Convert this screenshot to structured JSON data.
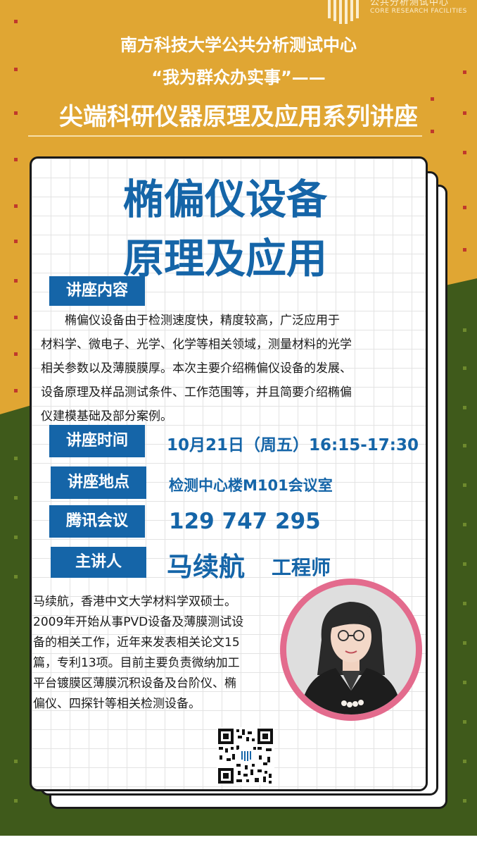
{
  "logo": {
    "name_cn": "公共分析测试中心",
    "name_en": "CORE RESEARCH FACILITIES"
  },
  "header": {
    "line1": "南方科技大学公共分析测试中心",
    "line2": "“我为群众办实事”——",
    "line3": "尖端科研仪器原理及应用系列讲座"
  },
  "title": {
    "line1": "椭偏仪设备",
    "line2": "原理及应用"
  },
  "content": {
    "label": "讲座内容",
    "lines": [
      "　　椭偏仪设备由于检测速度快，精度较高，广泛应用于",
      "材料学、微电子、光学、化学等相关领域，测量材料的光学",
      "相关参数以及薄膜膜厚。本次主要介绍椭偏仪设备的发展、",
      "设备原理及样品测试条件、工作范围等，并且简要介绍椭偏",
      "仪建模基础及部分案例。"
    ]
  },
  "time": {
    "label": "讲座时间",
    "value": "10月21日（周五）16:15-17:30"
  },
  "place": {
    "label": "讲座地点",
    "value": "检测中心楼M101会议室"
  },
  "meeting": {
    "label": "腾讯会议",
    "value": "129 747 295"
  },
  "speaker": {
    "label": "主讲人",
    "name": "马续航",
    "title": "工程师",
    "bio": [
      "马续航，香港中文大学材料学双硕士。",
      "2009年开始从事PVD设备及薄膜测试设",
      "备的相关工作，近年来发表相关论文15",
      "篇，专利13项。目前主要负责微纳加工",
      "平台镀膜区薄膜沉积设备及台阶仪、椭",
      "偏仪、四探针等相关检测设备。"
    ]
  },
  "colors": {
    "background_orange": "#e0a633",
    "background_green": "#3f5a1b",
    "accent_blue": "#1565a8",
    "photo_ring_pink": "#e36b8d",
    "dots_red": "#c0392b"
  }
}
